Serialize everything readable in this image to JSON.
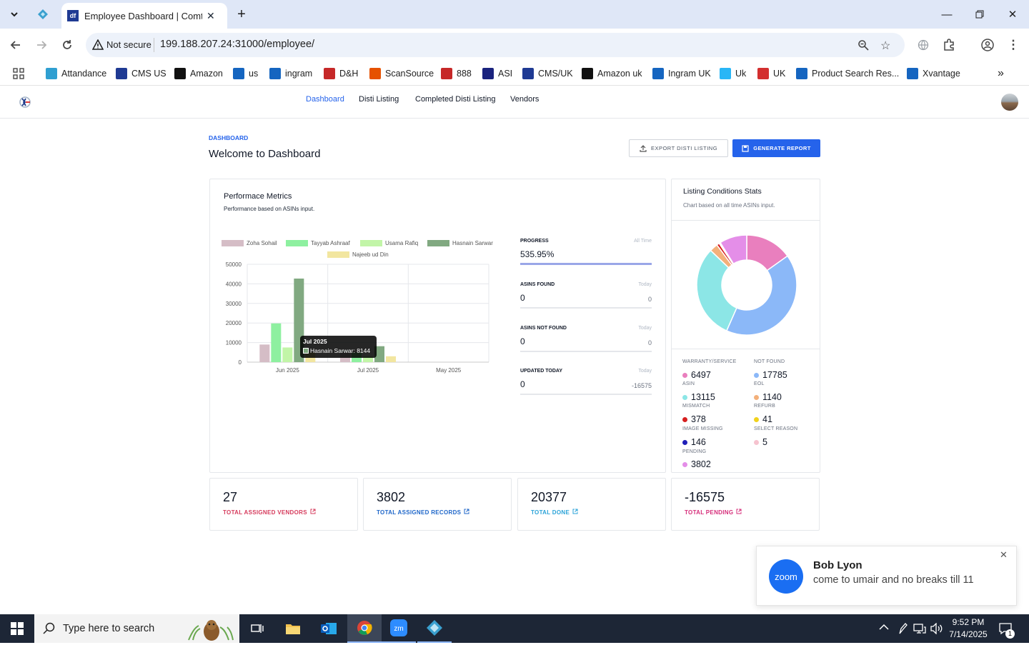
{
  "browser": {
    "tab_title": "Employee Dashboard | Comtan",
    "new_tab": "+",
    "url": "199.188.207.24:31000/employee/",
    "security": "Not secure"
  },
  "bookmarks": [
    {
      "label": "Attandance",
      "icon": "diamond-icon",
      "color": "#2f9fd1"
    },
    {
      "label": "CMS US",
      "icon": "df-icon",
      "color": "#1f3a93"
    },
    {
      "label": "Amazon",
      "icon": "amazon-icon",
      "color": "#111111"
    },
    {
      "label": "us",
      "icon": "ec-icon",
      "color": "#1565c0"
    },
    {
      "label": "ingram",
      "icon": "ingram-icon",
      "color": "#1565c0"
    },
    {
      "label": "D&H",
      "icon": "dh-icon",
      "color": "#c62828"
    },
    {
      "label": "ScanSource",
      "icon": "scansource-icon",
      "color": "#e65100"
    },
    {
      "label": "888",
      "icon": "888-icon",
      "color": "#c62828"
    },
    {
      "label": "ASI",
      "icon": "asi-icon",
      "color": "#1a237e"
    },
    {
      "label": "CMS/UK",
      "icon": "df-icon",
      "color": "#1f3a93"
    },
    {
      "label": "Amazon uk",
      "icon": "amazon-icon",
      "color": "#111111"
    },
    {
      "label": "Ingram UK",
      "icon": "ingram-icon",
      "color": "#1565c0"
    },
    {
      "label": "Uk",
      "icon": "c-icon",
      "color": "#29b6f6"
    },
    {
      "label": "UK",
      "icon": "ex-icon",
      "color": "#d32f2f"
    },
    {
      "label": "Product Search Res...",
      "icon": "ec-icon",
      "color": "#1565c0"
    },
    {
      "label": "Xvantage",
      "icon": "ingram-icon",
      "color": "#1565c0"
    }
  ],
  "nav": {
    "items": [
      "Dashboard",
      "Disti Listing",
      "Completed Disti Listing",
      "Vendors"
    ],
    "active": "Dashboard"
  },
  "page": {
    "breadcrumb": "DASHBOARD",
    "title": "Welcome to Dashboard",
    "export_label": "EXPORT DISTI LISTING",
    "generate_label": "GENERATE REPORT"
  },
  "performance": {
    "title": "Performace Metrics",
    "subtitle": "Performance based on ASINs input.",
    "tooltip": {
      "title": "Jul 2025",
      "body": "Hasnain Sarwar: 8144"
    }
  },
  "chart_data": {
    "type": "bar",
    "categories": [
      "Jun 2025",
      "Jul 2025",
      "May 2025"
    ],
    "ylim": [
      0,
      50000
    ],
    "yticks": [
      0,
      10000,
      20000,
      30000,
      40000,
      50000
    ],
    "series": [
      {
        "name": "Zoha Sohail",
        "color": "#d5bdc6",
        "values": [
          9000,
          5000,
          0
        ]
      },
      {
        "name": "Tayyab Ashraaf",
        "color": "#8ef0a0",
        "values": [
          19800,
          5000,
          0
        ]
      },
      {
        "name": "Usama Rafiq",
        "color": "#c2f5a8",
        "values": [
          7500,
          3000,
          0
        ]
      },
      {
        "name": "Hasnain Sarwar",
        "color": "#81a981",
        "values": [
          42700,
          8144,
          0
        ]
      },
      {
        "name": "Najeeb ud Din",
        "color": "#f2e6a0",
        "values": [
          5000,
          3000,
          0
        ]
      }
    ]
  },
  "stats": [
    {
      "label": "PROGRESS",
      "right": "All Time",
      "value": "535.95%",
      "sub": "",
      "bar_fill": 1.0
    },
    {
      "label": "ASINS FOUND",
      "right": "Today",
      "value": "0",
      "sub": "0",
      "bar_fill": 0
    },
    {
      "label": "ASINS NOT FOUND",
      "right": "Today",
      "value": "0",
      "sub": "0",
      "bar_fill": 0
    },
    {
      "label": "UPDATED TODAY",
      "right": "Today",
      "value": "0",
      "sub": "-16575",
      "bar_fill": 0
    }
  ],
  "listing": {
    "title": "Listing Conditions Stats",
    "subtitle": "Chart based on all time ASINs input.",
    "conditions": [
      {
        "label": "WARRANTY/SERVICE",
        "value": "6497",
        "color": "#e97fbe"
      },
      {
        "label": "NOT FOUND",
        "value": "17785",
        "color": "#8bb8f8"
      },
      {
        "label": "ASIN",
        "value": "13115",
        "color": "#8ce6e6"
      },
      {
        "label": "EOL",
        "value": "1140",
        "color": "#f3b07a"
      },
      {
        "label": "MISMATCH",
        "value": "378",
        "color": "#d61f1f"
      },
      {
        "label": "REFURB",
        "value": "41",
        "color": "#f1d21c"
      },
      {
        "label": "IMAGE MISSING",
        "value": "146",
        "color": "#1f1fb8"
      },
      {
        "label": "SELECT REASON",
        "value": "5",
        "color": "#f6c3cf"
      },
      {
        "label": "PENDING",
        "value": "3802",
        "color": "#e48ee8"
      }
    ]
  },
  "summary": [
    {
      "value": "27",
      "label": "TOTAL ASSIGNED VENDORS",
      "color": "#d63b5c"
    },
    {
      "value": "3802",
      "label": "TOTAL ASSIGNED RECORDS",
      "color": "#1e66c9"
    },
    {
      "value": "20377",
      "label": "TOTAL DONE",
      "color": "#2ba3d8"
    },
    {
      "value": "-16575",
      "label": "TOTAL PENDING",
      "color": "#d62d7a"
    }
  ],
  "toast": {
    "name": "Bob Lyon",
    "message": "come to umair and no breaks till 11",
    "app": "zoom"
  },
  "taskbar": {
    "search_placeholder": "Type here to search",
    "time": "9:52 PM",
    "date": "7/14/2025",
    "notifications": "1"
  }
}
